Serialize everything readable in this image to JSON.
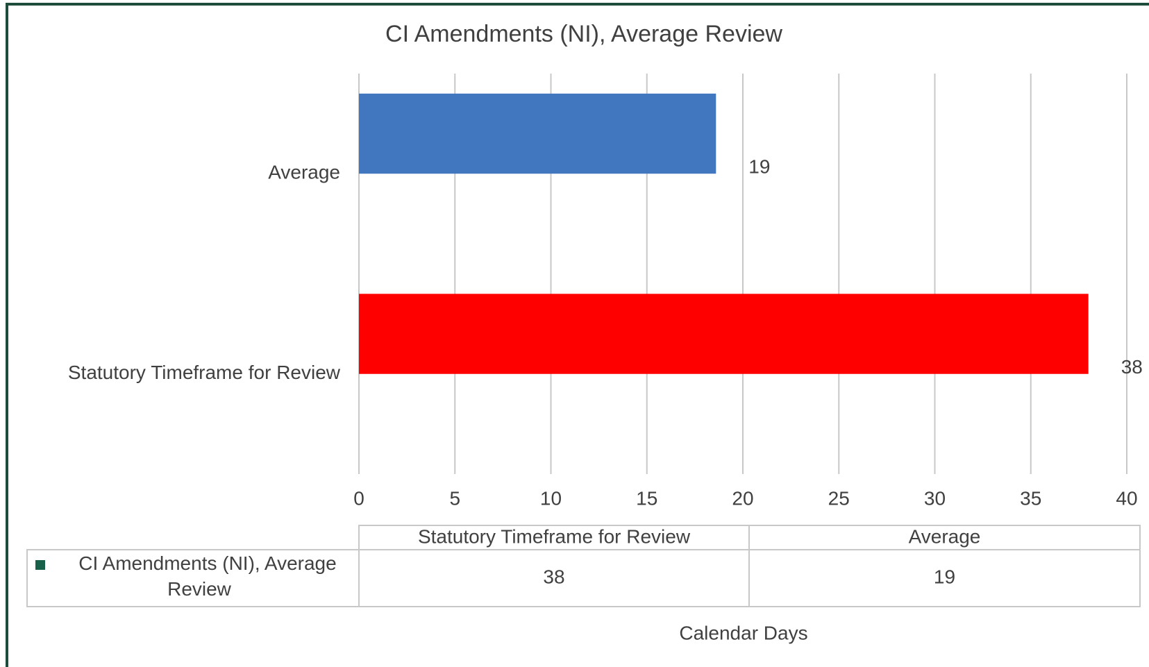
{
  "chart_data": {
    "type": "bar",
    "orientation": "horizontal",
    "title": "CI Amendments (NI), Average Review",
    "categories": [
      "Statutory Timeframe for Review",
      "Average"
    ],
    "series": [
      {
        "name": "CI Amendments (NI), Average Review",
        "color": "#17604a",
        "colors": [
          "#ff0000",
          "#4177be"
        ],
        "values": [
          38,
          18.6
        ],
        "value_labels": [
          "38",
          "19"
        ]
      }
    ],
    "xlabel": "Calendar Days",
    "xlim": [
      0,
      40
    ],
    "xticks": [
      0,
      5,
      10,
      15,
      20,
      25,
      30,
      35,
      40
    ],
    "grid": true,
    "data_table": true
  }
}
